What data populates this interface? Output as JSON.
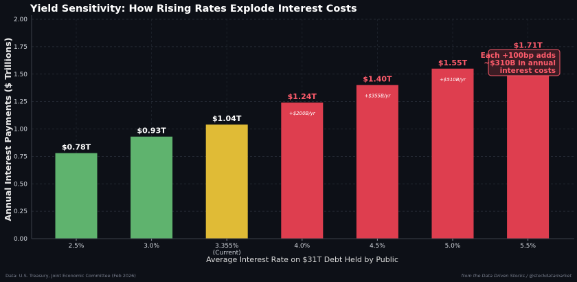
{
  "chart_data": {
    "type": "bar",
    "title": "Yield Sensitivity: How Rising Rates Explode Interest Costs",
    "xlabel": "Average Interest Rate on $31T Debt Held by Public",
    "ylabel": "Annual Interest Payments ($ Trillions)",
    "ylim": [
      0,
      2.0
    ],
    "yticks": [
      "0.00",
      "0.25",
      "0.50",
      "0.75",
      "1.00",
      "1.25",
      "1.50",
      "1.75",
      "2.00"
    ],
    "grid": true,
    "categories": [
      "2.5%",
      "3.0%",
      "3.355%",
      "4.0%",
      "4.5%",
      "5.0%",
      "5.5%"
    ],
    "category_sublabels": [
      "",
      "",
      "(Current)",
      "",
      "",
      "",
      ""
    ],
    "values": [
      0.78,
      0.93,
      1.04,
      1.24,
      1.4,
      1.55,
      1.71
    ],
    "value_labels": [
      "$0.78T",
      "$0.93T",
      "$1.04T",
      "$1.24T",
      "$1.40T",
      "$1.55T",
      "$1.71T"
    ],
    "increment_labels": [
      "",
      "",
      "",
      "+$200B/yr",
      "+$355B/yr",
      "+$510B/yr",
      ""
    ],
    "bar_colors": [
      "#5fb36e",
      "#5fb36e",
      "#e0bb36",
      "#de3e4f",
      "#de3e4f",
      "#de3e4f",
      "#de3e4f"
    ],
    "value_label_colors": [
      "#ffffff",
      "#ffffff",
      "#ffffff",
      "#ff5c6c",
      "#ff5c6c",
      "#ff5c6c",
      "#ff5c6c"
    ],
    "annotation": {
      "lines": [
        "Each +100bp adds",
        "~$310B in annual",
        "interest costs"
      ],
      "color": "#ff5c6c"
    },
    "footer_left": "Data: U.S. Treasury, Joint Economic Committee (Feb 2026)",
    "footer_right": "from the Data Driven Stocks / @stockdatamarket"
  }
}
